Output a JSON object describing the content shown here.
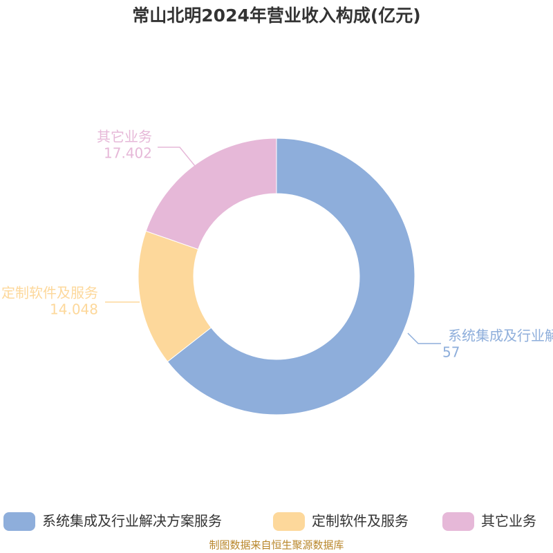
{
  "chart_data": {
    "type": "donut",
    "title": "常山北明2024年营业收入构成(亿元)",
    "categories": [
      "系统集成及行业解决方案服务",
      "定制软件及服务",
      "其它业务"
    ],
    "values": [
      57.0,
      14.048,
      17.402
    ],
    "colors": [
      "#8eaedb",
      "#fdd89b",
      "#e6b8d8"
    ],
    "source": "制图数据来自恒生聚源数据库"
  }
}
